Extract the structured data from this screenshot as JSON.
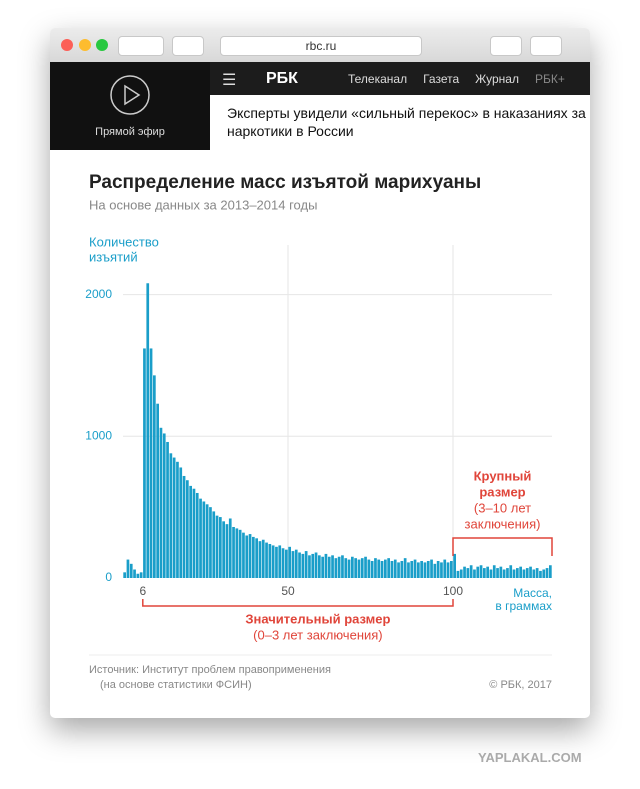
{
  "browser": {
    "url": "rbc.ru"
  },
  "header": {
    "live": "Прямой эфир",
    "logo": "РБК",
    "nav": [
      "Телеканал",
      "Газета",
      "Журнал",
      "РБК+"
    ],
    "headline": "Эксперты увидели «сильный перекос» в наказаниях за наркотики в России"
  },
  "chart_data": {
    "type": "histogram",
    "title": "Распределение масс изъятой марихуаны",
    "subtitle": "На основе данных за 2013–2014 годы",
    "ylabel": [
      "Количество",
      "изъятий"
    ],
    "xlabel": [
      "Масса,",
      "в граммах"
    ],
    "color": "#1a9ec9",
    "bins": [
      0,
      1,
      2,
      3,
      4,
      5,
      6,
      7,
      8,
      9,
      10,
      11,
      12,
      13,
      14,
      15,
      16,
      17,
      18,
      19,
      20,
      21,
      22,
      23,
      24,
      25,
      26,
      27,
      28,
      29,
      30,
      31,
      32,
      33,
      34,
      35,
      36,
      37,
      38,
      39,
      40,
      41,
      42,
      43,
      44,
      45,
      46,
      47,
      48,
      49,
      50,
      51,
      52,
      53,
      54,
      55,
      56,
      57,
      58,
      59,
      60,
      61,
      62,
      63,
      64,
      65,
      66,
      67,
      68,
      69,
      70,
      71,
      72,
      73,
      74,
      75,
      76,
      77,
      78,
      79,
      80,
      81,
      82,
      83,
      84,
      85,
      86,
      87,
      88,
      89,
      90,
      91,
      92,
      93,
      94,
      95,
      96,
      97,
      98,
      99,
      100,
      101,
      102,
      103,
      104,
      105,
      106,
      107,
      108,
      109,
      110,
      111,
      112,
      113,
      114,
      115,
      116,
      117,
      118,
      119,
      120,
      121,
      122,
      123,
      124,
      125,
      126,
      127,
      128,
      129,
      130
    ],
    "values": [
      40,
      130,
      100,
      60,
      30,
      40,
      1620,
      2080,
      1620,
      1430,
      1230,
      1060,
      1020,
      960,
      880,
      850,
      820,
      780,
      720,
      690,
      650,
      630,
      600,
      560,
      540,
      520,
      500,
      470,
      440,
      430,
      400,
      380,
      420,
      360,
      350,
      340,
      320,
      300,
      310,
      290,
      280,
      260,
      270,
      250,
      240,
      230,
      220,
      230,
      210,
      200,
      220,
      190,
      200,
      180,
      170,
      190,
      160,
      170,
      180,
      160,
      150,
      170,
      150,
      160,
      140,
      150,
      160,
      140,
      130,
      150,
      140,
      130,
      140,
      150,
      130,
      120,
      140,
      130,
      120,
      130,
      140,
      120,
      130,
      110,
      120,
      140,
      110,
      120,
      130,
      110,
      120,
      110,
      120,
      130,
      100,
      120,
      110,
      130,
      110,
      120,
      170,
      50,
      60,
      80,
      70,
      90,
      60,
      80,
      90,
      70,
      80,
      60,
      90,
      70,
      80,
      60,
      70,
      90,
      60,
      70,
      80,
      60,
      70,
      80,
      60,
      70,
      50,
      60,
      70,
      90
    ],
    "xlim": [
      0,
      130
    ],
    "ylim": [
      0,
      2350
    ],
    "xticks": [
      6,
      50,
      100
    ],
    "yticks": [
      0,
      1000,
      2000
    ],
    "grid": true,
    "annotations": [
      {
        "label": [
          "Значительный размер"
        ],
        "note": [
          "(0–3 лет заключения)"
        ],
        "color": "#e0453a"
      },
      {
        "label": [
          "Крупный",
          "размер"
        ],
        "note": [
          "(3–10 лет",
          "заключения)"
        ],
        "color": "#e0453a"
      }
    ],
    "source": [
      "Источник: Институт проблем правоприменения",
      "(на основе статистики ФСИН)"
    ],
    "copyright": "© РБК, 2017"
  },
  "watermark": "YAPLAKAL.COM"
}
